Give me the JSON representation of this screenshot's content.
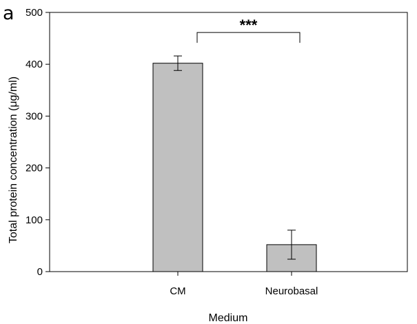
{
  "panel_label": "a",
  "chart_data": {
    "type": "bar",
    "categories": [
      "CM",
      "Neurobasal"
    ],
    "values": [
      402,
      52
    ],
    "errors": [
      14,
      28
    ],
    "xlabel": "Medium",
    "ylabel": "Total protein concentration (μg/ml)",
    "ylim": [
      0,
      500
    ],
    "yticks": [
      0,
      100,
      200,
      300,
      400,
      500
    ],
    "grid": false,
    "bar_color": "#c0c0c0",
    "significance": {
      "between": [
        0,
        1
      ],
      "label": "***"
    }
  }
}
